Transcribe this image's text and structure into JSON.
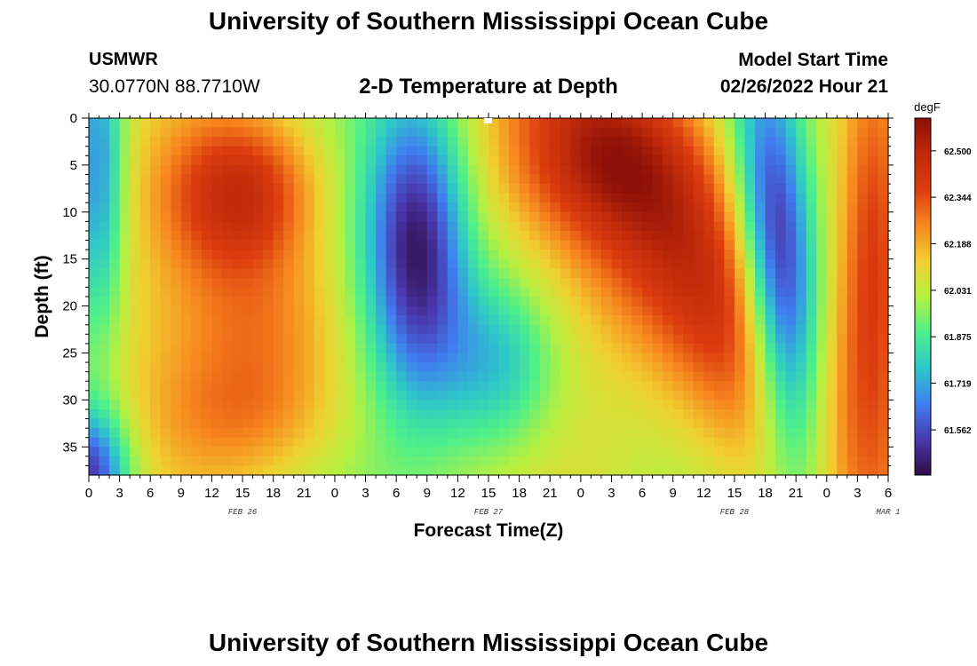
{
  "header": {
    "title": "University of Southern Mississippi Ocean Cube",
    "station": "USMWR",
    "coords": "30.0770N  88.7710W",
    "chart_title": "2-D Temperature at Depth",
    "model_label": "Model Start Time",
    "model_time": "02/26/2022 Hour 21"
  },
  "footer": {
    "title": "University of Southern Mississippi Ocean Cube"
  },
  "chart_data": {
    "type": "heatmap",
    "title": "2-D Temperature at Depth",
    "xlabel": "Forecast Time(Z)",
    "ylabel": "Depth (ft)",
    "units": "degF",
    "x_ticks": [
      "0",
      "3",
      "6",
      "9",
      "12",
      "15",
      "18",
      "21",
      "0",
      "3",
      "6",
      "9",
      "12",
      "15",
      "18",
      "21",
      "0",
      "3",
      "6",
      "9",
      "12",
      "15",
      "18",
      "21",
      "0",
      "3",
      "6"
    ],
    "day_labels": [
      {
        "label": "FEB 26",
        "hour": 15
      },
      {
        "label": "FEB 27",
        "hour": 39
      },
      {
        "label": "FEB 28",
        "hour": 63
      },
      {
        "label": "MAR 1",
        "hour": 78
      }
    ],
    "xlim_hours": [
      0,
      78
    ],
    "y_ticks": [
      0,
      5,
      10,
      15,
      20,
      25,
      30,
      35
    ],
    "ylim": [
      0,
      38
    ],
    "colorbar_ticks": [
      "62.500",
      "62.344",
      "62.188",
      "62.031",
      "61.875",
      "61.719",
      "61.562"
    ],
    "colorbar_range": [
      61.41,
      62.61
    ],
    "grid": {
      "nx": 78,
      "ny": 38
    },
    "color_stops": [
      "#2e0a44",
      "#4a39b0",
      "#3f7ef0",
      "#2ec8c8",
      "#4ef08a",
      "#b6f040",
      "#f0d030",
      "#f7871e",
      "#dc3d0f",
      "#c02a0a",
      "#8c0f08"
    ]
  }
}
